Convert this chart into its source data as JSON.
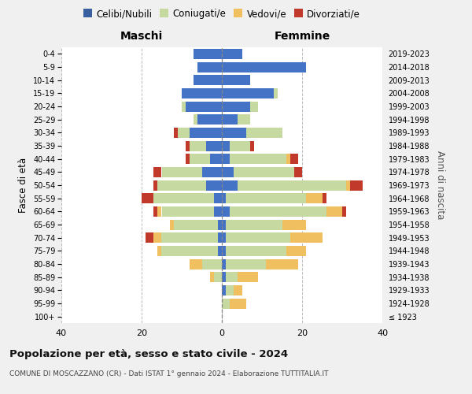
{
  "age_groups": [
    "100+",
    "95-99",
    "90-94",
    "85-89",
    "80-84",
    "75-79",
    "70-74",
    "65-69",
    "60-64",
    "55-59",
    "50-54",
    "45-49",
    "40-44",
    "35-39",
    "30-34",
    "25-29",
    "20-24",
    "15-19",
    "10-14",
    "5-9",
    "0-4"
  ],
  "birth_years": [
    "≤ 1923",
    "1924-1928",
    "1929-1933",
    "1934-1938",
    "1939-1943",
    "1944-1948",
    "1949-1953",
    "1954-1958",
    "1959-1963",
    "1964-1968",
    "1969-1973",
    "1974-1978",
    "1979-1983",
    "1984-1988",
    "1989-1993",
    "1994-1998",
    "1999-2003",
    "2004-2008",
    "2009-2013",
    "2014-2018",
    "2019-2023"
  ],
  "colors": {
    "celibi": "#4472c4",
    "coniugati": "#c5d9a0",
    "vedovi": "#f0c060",
    "divorziati": "#c0392b"
  },
  "maschi": {
    "celibi": [
      0,
      0,
      0,
      0,
      0,
      1,
      1,
      1,
      2,
      2,
      4,
      5,
      3,
      4,
      8,
      6,
      9,
      10,
      7,
      6,
      7
    ],
    "coniugati": [
      0,
      0,
      0,
      2,
      5,
      14,
      14,
      11,
      13,
      15,
      12,
      10,
      5,
      4,
      3,
      1,
      1,
      0,
      0,
      0,
      0
    ],
    "vedovi": [
      0,
      0,
      0,
      1,
      3,
      1,
      2,
      1,
      1,
      0,
      0,
      0,
      0,
      0,
      0,
      0,
      0,
      0,
      0,
      0,
      0
    ],
    "divorziati": [
      0,
      0,
      0,
      0,
      0,
      0,
      2,
      0,
      1,
      3,
      1,
      2,
      1,
      1,
      1,
      0,
      0,
      0,
      0,
      0,
      0
    ]
  },
  "femmine": {
    "celibi": [
      0,
      0,
      1,
      1,
      1,
      1,
      1,
      1,
      2,
      1,
      4,
      3,
      2,
      2,
      6,
      4,
      7,
      13,
      7,
      21,
      5
    ],
    "coniugati": [
      0,
      2,
      2,
      3,
      10,
      15,
      16,
      14,
      24,
      20,
      27,
      15,
      14,
      5,
      9,
      3,
      2,
      1,
      0,
      0,
      0
    ],
    "vedovi": [
      0,
      4,
      2,
      5,
      8,
      5,
      8,
      6,
      4,
      4,
      1,
      0,
      1,
      0,
      0,
      0,
      0,
      0,
      0,
      0,
      0
    ],
    "divorziati": [
      0,
      0,
      0,
      0,
      0,
      0,
      0,
      0,
      1,
      1,
      3,
      2,
      2,
      1,
      0,
      0,
      0,
      0,
      0,
      0,
      0
    ]
  },
  "xlim": 40,
  "title": "Popolazione per età, sesso e stato civile - 2024",
  "subtitle": "COMUNE DI MOSCAZZANO (CR) - Dati ISTAT 1° gennaio 2024 - Elaborazione TUTTITALIA.IT",
  "xlabel_left": "Maschi",
  "xlabel_right": "Femmine",
  "ylabel": "Fasce di età",
  "ylabel_right": "Anni di nascita",
  "legend_labels": [
    "Celibi/Nubili",
    "Coniugati/e",
    "Vedovi/e",
    "Divorziati/e"
  ],
  "bg_color": "#f0f0f0",
  "plot_bg": "#ffffff",
  "legend_marker_colors": [
    "#3a5fa0",
    "#c5d9a0",
    "#f0c060",
    "#c0392b"
  ]
}
